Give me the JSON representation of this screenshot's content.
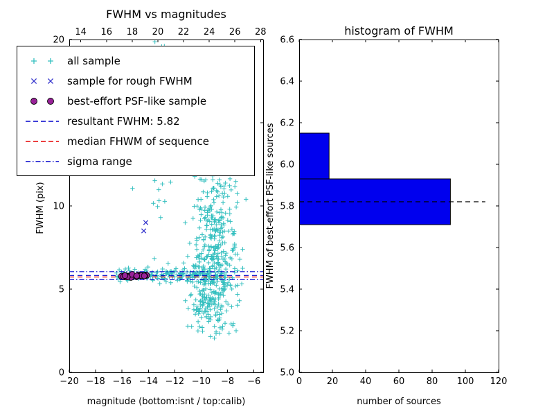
{
  "figure": {
    "bg": "#ffffff"
  },
  "left_plot": {
    "title": "FWHM vs magnitudes",
    "xlabel": "magnitude (bottom:isnt / top:calib)",
    "ylabel": "FWHM (pix)",
    "x_tick_labels": [
      "−20",
      "−18",
      "−16",
      "−14",
      "−12",
      "−10",
      "−8",
      "−6"
    ],
    "x_tick_values": [
      -20,
      -18,
      -16,
      -14,
      -12,
      -10,
      -8,
      -6
    ],
    "top_tick_labels": [
      "14",
      "16",
      "18",
      "20",
      "22",
      "24",
      "26",
      "28"
    ],
    "top_tick_values": [
      14,
      16,
      18,
      20,
      22,
      24,
      26,
      28
    ],
    "y_tick_labels": [
      "0",
      "5",
      "10",
      "15",
      "20"
    ],
    "y_tick_values": [
      0,
      5,
      10,
      15,
      20
    ]
  },
  "right_plot": {
    "title": "histogram of FWHM",
    "xlabel": "number of sources",
    "ylabel": "FWHM of best-effort PSF-like sources",
    "x_tick_labels": [
      "0",
      "20",
      "40",
      "60",
      "80",
      "100",
      "120"
    ],
    "x_tick_values": [
      0,
      20,
      40,
      60,
      80,
      100,
      120
    ],
    "y_tick_labels": [
      "5.0",
      "5.2",
      "5.4",
      "5.6",
      "5.8",
      "6.0",
      "6.2",
      "6.4",
      "6.6"
    ],
    "y_tick_values": [
      5.0,
      5.2,
      5.4,
      5.6,
      5.8,
      6.0,
      6.2,
      6.4,
      6.6
    ]
  },
  "legend": {
    "items": [
      {
        "label": "all sample",
        "marker": "plus",
        "color": "#33bfbf"
      },
      {
        "label": "sample for rough FWHM",
        "marker": "x",
        "color": "#3333cc"
      },
      {
        "label": "best-effort PSF-like sample",
        "marker": "circle",
        "color": "#992299"
      },
      {
        "label": "resultant FWHM: 5.82",
        "marker": "dashed-line",
        "color": "#0000cc"
      },
      {
        "label": "median FHWM of sequence",
        "marker": "dashed-line",
        "color": "#e60000"
      },
      {
        "label": "sigma range",
        "marker": "dashdot-line",
        "color": "#0000cc"
      }
    ]
  },
  "chart_data": [
    {
      "type": "scatter",
      "title": "FWHM vs magnitudes",
      "xlabel": "magnitude (bottom:isnt / top:calib)",
      "ylabel": "FWHM (pix)",
      "xlim": [
        -20,
        -5.3
      ],
      "ylim": [
        0,
        20
      ],
      "top_axis": {
        "lim": [
          13.1,
          28.2
        ],
        "ticks": [
          14,
          16,
          18,
          20,
          22,
          24,
          26,
          28
        ]
      },
      "grid": false,
      "legend_position": "upper left",
      "resultant_fwhm": 5.82,
      "series": [
        {
          "name": "all sample",
          "marker": "plus",
          "color": "#33bfbf",
          "clusters": [
            {
              "n": 150,
              "x": {
                "dist": "uniform",
                "min": -16.45,
                "max": -8.4
              },
              "y": {
                "dist": "normal",
                "mean": 5.85,
                "sd": 0.18,
                "min": 4.9,
                "max": 7.2
              }
            },
            {
              "n": 520,
              "x": {
                "dist": "normal",
                "mean": -9.15,
                "sd": 0.85,
                "min": -11.6,
                "max": -6.6
              },
              "y": {
                "dist": "lognormal",
                "mu": 1.92,
                "sigma": 0.5,
                "min": 2.3,
                "max": 19.9
              }
            },
            {
              "n": 26,
              "x": {
                "dist": "normal",
                "mean": -13.0,
                "sd": 0.35,
                "min": -14.2,
                "max": -12.2
              },
              "y": {
                "dist": "uniform",
                "min": 9.2,
                "max": 19.9
              }
            },
            {
              "n": 24,
              "x": {
                "dist": "normal",
                "mean": -10.15,
                "sd": 0.3,
                "min": -10.9,
                "max": -9.4
              },
              "y": {
                "dist": "uniform",
                "min": 12.0,
                "max": 19.9
              }
            },
            {
              "n": 20,
              "x": {
                "dist": "uniform",
                "min": -14.2,
                "max": -8.6
              },
              "y": {
                "dist": "normal",
                "mean": 5.9,
                "sd": 0.5,
                "min": 4.3,
                "max": 7.6
              }
            }
          ],
          "extra_points": [
            [
              -9.0,
              2.05
            ],
            [
              -8.4,
              2.6
            ],
            [
              -7.6,
              2.8
            ],
            [
              -7.1,
              4.3
            ],
            [
              -6.6,
              10.4
            ],
            [
              -6.85,
              6.25
            ],
            [
              -14.2,
              19.3
            ],
            [
              -14.05,
              12.9
            ],
            [
              -15.2,
              11.05
            ],
            [
              -9.3,
              2.15
            ],
            [
              -7.35,
              2.5
            ],
            [
              -11.2,
              4.3
            ],
            [
              -10.8,
              4.6
            ]
          ]
        },
        {
          "name": "sample for rough FWHM",
          "marker": "x",
          "color": "#3333cc",
          "points": [
            [
              -14.2,
              9.0
            ],
            [
              -14.35,
              8.5
            ]
          ]
        },
        {
          "name": "best-effort PSF-like sample",
          "marker": "circle",
          "color": "#992299",
          "edge_color": "#000000",
          "clusters": [
            {
              "n": 14,
              "x": {
                "dist": "uniform",
                "min": -16.05,
                "max": -15.15
              },
              "y": {
                "dist": "normal",
                "mean": 5.8,
                "sd": 0.05
              }
            },
            {
              "n": 16,
              "x": {
                "dist": "uniform",
                "min": -14.95,
                "max": -14.05
              },
              "y": {
                "dist": "normal",
                "mean": 5.8,
                "sd": 0.05
              }
            }
          ]
        }
      ],
      "hlines": [
        {
          "name": "median FHWM of sequence",
          "y": 5.73,
          "color": "#e60000",
          "style": "dashed"
        },
        {
          "name": "resultant FWHM",
          "y": 5.82,
          "color": "#0000cc",
          "style": "dashed"
        },
        {
          "name": "sigma range upper",
          "y": 6.05,
          "color": "#0000cc",
          "style": "dashdot"
        },
        {
          "name": "sigma range lower",
          "y": 5.57,
          "color": "#0000cc",
          "style": "dashdot"
        }
      ]
    },
    {
      "type": "bar",
      "orientation": "horizontal",
      "title": "histogram of FWHM",
      "xlabel": "number of sources",
      "ylabel": "FWHM of best-effort PSF-like sources",
      "xlim": [
        0,
        120
      ],
      "ylim": [
        5.0,
        6.6
      ],
      "grid": false,
      "bar_color": "#0000ee",
      "bar_edge_color": "#000000",
      "bins": [
        {
          "from": 5.71,
          "to": 5.93,
          "count": 91
        },
        {
          "from": 5.93,
          "to": 6.15,
          "count": 18
        }
      ],
      "dashed_line": {
        "y": 5.82,
        "x_from": 0,
        "x_to": 112,
        "color": "#000000",
        "style": "dashed"
      }
    }
  ]
}
